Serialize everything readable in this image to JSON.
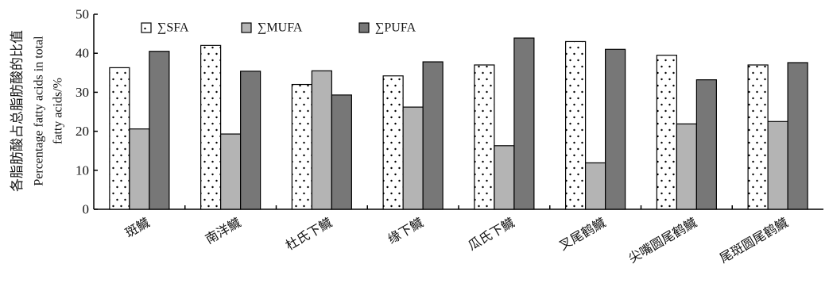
{
  "chart_data": {
    "type": "bar",
    "title": "",
    "xlabel": "",
    "ylabel_lines": [
      "各脂肪酸占总脂肪酸的比值",
      "Percentage fatty acids in total",
      "fatty acids/%"
    ],
    "ylim": [
      0,
      50
    ],
    "yticks": [
      0,
      10,
      20,
      30,
      40,
      50
    ],
    "grid": false,
    "legend_position": "top-left",
    "categories": [
      "斑鱵",
      "南洋鱵",
      "杜氏下鱵",
      "缘下鱵",
      "瓜氏下鱵",
      "叉尾鹤鱵",
      "尖嘴圆尾鹤鱵",
      "尾斑圆尾鹤鱵"
    ],
    "series": [
      {
        "name": "∑SFA",
        "values": [
          36.3,
          42.0,
          32.0,
          34.2,
          37.0,
          43.0,
          39.5,
          37.0
        ],
        "fill": "dotted",
        "color": "#ffffff"
      },
      {
        "name": "∑MUFA",
        "values": [
          20.6,
          19.3,
          35.5,
          26.2,
          16.3,
          11.9,
          21.9,
          22.5
        ],
        "fill": "solid",
        "color": "#b4b4b4"
      },
      {
        "name": "∑PUFA",
        "values": [
          40.5,
          35.4,
          29.3,
          37.8,
          43.9,
          41.0,
          33.2,
          37.6
        ],
        "fill": "solid",
        "color": "#777777"
      }
    ]
  }
}
